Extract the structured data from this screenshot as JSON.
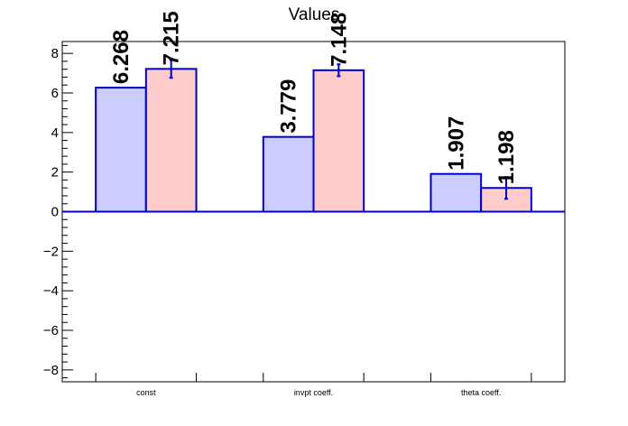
{
  "chart_data": {
    "type": "bar",
    "title": "Values",
    "xlabel": "",
    "ylabel": "",
    "categories": [
      "const",
      "invpt coeff.",
      "theta coeff."
    ],
    "series": [
      {
        "values": [
          6.268,
          3.779,
          1.907
        ],
        "value_labels": [
          "6.268",
          "3.779",
          "1.907"
        ],
        "errors": [
          null,
          null,
          null
        ],
        "fill": "#ccccff",
        "stroke": "#0000cc"
      },
      {
        "values": [
          7.215,
          7.148,
          1.198
        ],
        "value_labels": [
          "7.215",
          "7.148",
          "1.198"
        ],
        "errors": [
          0.45,
          0.3,
          0.55
        ],
        "fill": "#ffcccc",
        "stroke": "#0000cc"
      }
    ],
    "ylim": [
      -8.6,
      8.6
    ],
    "yticks": [
      -8,
      -6,
      -4,
      -2,
      0,
      2,
      4,
      6,
      8
    ],
    "ytick_labels": [
      "−8",
      "−6",
      "−4",
      "−2",
      "0",
      "2",
      "4",
      "6",
      "8"
    ],
    "grid": false,
    "legend": "none",
    "zero_line_color": "#0000cc"
  }
}
